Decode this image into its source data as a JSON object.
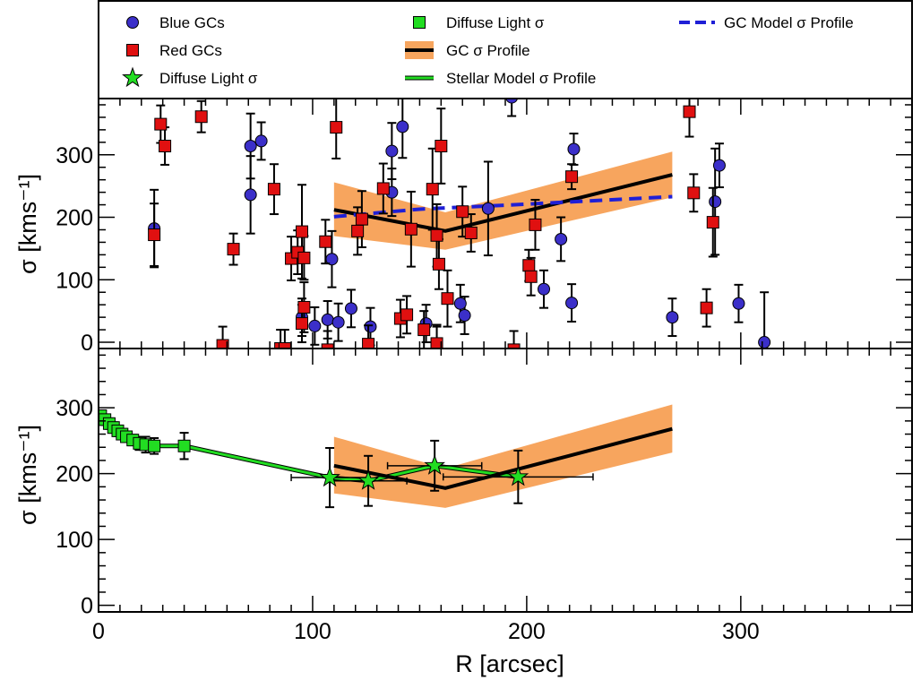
{
  "chart_data": [
    {
      "panel": "top",
      "type": "scatter",
      "xlabel": "R [arcsec]",
      "ylabel": "σ [kms⁻¹]",
      "xlim": [
        0,
        380
      ],
      "ylim": [
        -10,
        390
      ],
      "yticks": [
        0,
        100,
        200,
        300
      ],
      "series": [
        {
          "name": "Blue GCs",
          "marker": "circle",
          "color": "#3b2fc9",
          "points": [
            {
              "x": 26,
              "y": 182,
              "err": 62
            },
            {
              "x": 71,
              "y": 314,
              "err": 52
            },
            {
              "x": 71,
              "y": 236,
              "err": 62
            },
            {
              "x": 76,
              "y": 322,
              "err": 30
            },
            {
              "x": 95,
              "y": 40,
              "err": 30
            },
            {
              "x": 101,
              "y": 26,
              "err": 30
            },
            {
              "x": 107,
              "y": 36,
              "err": 30
            },
            {
              "x": 109,
              "y": 133,
              "err": 45
            },
            {
              "x": 112,
              "y": 32,
              "err": 30
            },
            {
              "x": 118,
              "y": 54,
              "err": 30
            },
            {
              "x": 127,
              "y": 25,
              "err": 30
            },
            {
              "x": 137,
              "y": 306,
              "err": 45
            },
            {
              "x": 137,
              "y": 240,
              "err": 38
            },
            {
              "x": 142,
              "y": 345,
              "err": 50
            },
            {
              "x": 153,
              "y": 30,
              "err": 30
            },
            {
              "x": 158,
              "y": -5,
              "err": 30
            },
            {
              "x": 169,
              "y": 62,
              "err": 30
            },
            {
              "x": 171,
              "y": 43,
              "err": 30
            },
            {
              "x": 182,
              "y": 214,
              "err": 75
            },
            {
              "x": 193,
              "y": 392,
              "err": 30
            },
            {
              "x": 208,
              "y": 85,
              "err": 30
            },
            {
              "x": 216,
              "y": 165,
              "err": 35
            },
            {
              "x": 221,
              "y": 63,
              "err": 30
            },
            {
              "x": 222,
              "y": 309,
              "err": 25
            },
            {
              "x": 268,
              "y": 40,
              "err": 30
            },
            {
              "x": 288,
              "y": 225,
              "err": 85
            },
            {
              "x": 290,
              "y": 283,
              "err": 35
            },
            {
              "x": 299,
              "y": 62,
              "err": 30
            },
            {
              "x": 311,
              "y": 0,
              "err": 80
            }
          ]
        },
        {
          "name": "Red GCs",
          "marker": "square",
          "color": "#e01010",
          "points": [
            {
              "x": 26,
              "y": 172,
              "err": 50
            },
            {
              "x": 29,
              "y": 349,
              "err": 30
            },
            {
              "x": 31,
              "y": 314,
              "err": 30
            },
            {
              "x": 48,
              "y": 361,
              "err": 25
            },
            {
              "x": 58,
              "y": -5,
              "err": 30
            },
            {
              "x": 63,
              "y": 149,
              "err": 25
            },
            {
              "x": 82,
              "y": 245,
              "err": 40
            },
            {
              "x": 85,
              "y": -10,
              "err": 30
            },
            {
              "x": 87,
              "y": -10,
              "err": 30
            },
            {
              "x": 90,
              "y": 134,
              "err": 35
            },
            {
              "x": 93,
              "y": 144,
              "err": 35
            },
            {
              "x": 95,
              "y": 177,
              "err": 75
            },
            {
              "x": 96,
              "y": 135,
              "err": 35
            },
            {
              "x": 96,
              "y": 56,
              "err": 40
            },
            {
              "x": 95,
              "y": 30,
              "err": 30
            },
            {
              "x": 106,
              "y": 161,
              "err": 35
            },
            {
              "x": 107,
              "y": -12,
              "err": 30
            },
            {
              "x": 111,
              "y": 344,
              "err": 50
            },
            {
              "x": 121,
              "y": 178,
              "err": 38
            },
            {
              "x": 123,
              "y": 197,
              "err": 45
            },
            {
              "x": 126,
              "y": -3,
              "err": 30
            },
            {
              "x": 133,
              "y": 246,
              "err": 40
            },
            {
              "x": 141,
              "y": 38,
              "err": 30
            },
            {
              "x": 144,
              "y": 44,
              "err": 30
            },
            {
              "x": 146,
              "y": 181,
              "err": 60
            },
            {
              "x": 152,
              "y": 20,
              "err": 30
            },
            {
              "x": 156,
              "y": 245,
              "err": 65
            },
            {
              "x": 158,
              "y": 171,
              "err": 50
            },
            {
              "x": 158,
              "y": -2,
              "err": 30
            },
            {
              "x": 159,
              "y": 125,
              "err": 40
            },
            {
              "x": 160,
              "y": 314,
              "err": 60
            },
            {
              "x": 163,
              "y": 70,
              "err": 45
            },
            {
              "x": 170,
              "y": 209,
              "err": 40
            },
            {
              "x": 174,
              "y": 175,
              "err": 30
            },
            {
              "x": 194,
              "y": -12,
              "err": 30
            },
            {
              "x": 201,
              "y": 123,
              "err": 25
            },
            {
              "x": 202,
              "y": 105,
              "err": 30
            },
            {
              "x": 204,
              "y": 188,
              "err": 40
            },
            {
              "x": 221,
              "y": 265,
              "err": 20
            },
            {
              "x": 276,
              "y": 369,
              "err": 40
            },
            {
              "x": 278,
              "y": 239,
              "err": 30
            },
            {
              "x": 284,
              "y": 55,
              "err": 30
            },
            {
              "x": 287,
              "y": 192,
              "err": 55
            }
          ]
        },
        {
          "name": "GC σ Profile",
          "style": "line+band",
          "color": "#000000",
          "band_color": "#f7a55e",
          "x": [
            110,
            162,
            268
          ],
          "y": [
            212,
            178,
            268
          ],
          "band_lower": [
            170,
            148,
            232
          ],
          "band_upper": [
            256,
            208,
            305
          ]
        },
        {
          "name": "GC Model σ Profile",
          "style": "dashed",
          "color": "#1f1fd6",
          "x": [
            110,
            150,
            200,
            268
          ],
          "y": [
            201,
            213,
            221,
            233
          ]
        }
      ]
    },
    {
      "panel": "bottom",
      "type": "scatter",
      "xlabel": "R [arcsec]",
      "ylabel": "σ [kms⁻¹]",
      "xlim": [
        0,
        380
      ],
      "ylim": [
        -10,
        390
      ],
      "xticks": [
        0,
        100,
        200,
        300
      ],
      "yticks": [
        0,
        100,
        200,
        300
      ],
      "series": [
        {
          "name": "Diffuse Light σ",
          "marker": "square",
          "color": "#22dd22",
          "points": [
            {
              "x": 1,
              "y": 288,
              "err": 8
            },
            {
              "x": 3,
              "y": 282,
              "err": 8
            },
            {
              "x": 5,
              "y": 276,
              "err": 8
            },
            {
              "x": 7,
              "y": 270,
              "err": 8
            },
            {
              "x": 9,
              "y": 265,
              "err": 8
            },
            {
              "x": 11,
              "y": 260,
              "err": 8
            },
            {
              "x": 13,
              "y": 256,
              "err": 8
            },
            {
              "x": 16,
              "y": 251,
              "err": 8
            },
            {
              "x": 19,
              "y": 246,
              "err": 10
            },
            {
              "x": 22,
              "y": 244,
              "err": 12
            },
            {
              "x": 26,
              "y": 242,
              "err": 12
            },
            {
              "x": 40,
              "y": 242,
              "err": 20
            }
          ]
        },
        {
          "name": "Diffuse Light σ",
          "marker": "star",
          "color": "#22dd22",
          "points": [
            {
              "x": 108,
              "y": 194,
              "err": 45,
              "xerr": 18
            },
            {
              "x": 126,
              "y": 189,
              "err": 38,
              "xerr": 18
            },
            {
              "x": 157,
              "y": 212,
              "err": 38,
              "xerr": 22
            },
            {
              "x": 196,
              "y": 195,
              "err": 40,
              "xerr": 35
            }
          ]
        },
        {
          "name": "Stellar Model σ Profile",
          "style": "line",
          "color": "#22dd22",
          "x": [
            0,
            4,
            8,
            12,
            16,
            20,
            26,
            40,
            108,
            126,
            157,
            196
          ],
          "y": [
            290,
            279,
            269,
            260,
            252,
            246,
            242,
            242,
            194,
            189,
            212,
            195
          ]
        },
        {
          "name": "GC σ Profile",
          "style": "line+band",
          "color": "#000000",
          "band_color": "#f7a55e",
          "x": [
            110,
            162,
            268
          ],
          "y": [
            212,
            178,
            268
          ],
          "band_lower": [
            170,
            148,
            232
          ],
          "band_upper": [
            256,
            208,
            305
          ]
        }
      ]
    }
  ],
  "legend": {
    "placement": "top",
    "items": [
      {
        "label": "Blue GCs",
        "symbol": "circle",
        "color": "#3b2fc9"
      },
      {
        "label": "Red GCs",
        "symbol": "square",
        "color": "#e01010"
      },
      {
        "label": "Diffuse Light σ",
        "symbol": "star",
        "color": "#22dd22"
      },
      {
        "label": "Diffuse Light σ",
        "symbol": "square",
        "color": "#22dd22"
      },
      {
        "label": "GC σ Profile",
        "symbol": "line-band",
        "color": "#000000",
        "band_color": "#f7a55e"
      },
      {
        "label": "Stellar Model σ Profile",
        "symbol": "green-line",
        "color": "#22dd22"
      },
      {
        "label": "GC Model σ Profile",
        "symbol": "dashed-line",
        "color": "#1f1fd6"
      }
    ]
  }
}
